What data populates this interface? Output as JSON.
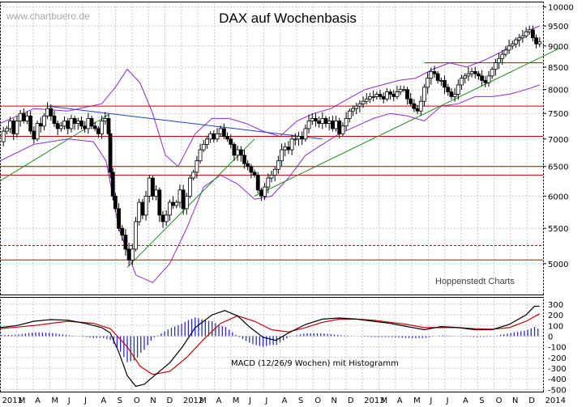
{
  "chart_data": [
    {
      "type": "candlestick",
      "title": "DAX auf Wochenbasis",
      "watermark": "www.chartbuero.de",
      "credit": "Hoppenstedt Charts",
      "y_scale": "log",
      "ylim": [
        4600,
        10100
      ],
      "y_ticks": [
        5000,
        5500,
        6000,
        6500,
        7000,
        7500,
        8000,
        8500,
        9000,
        9500,
        10000
      ],
      "x_ticks": [
        "2011",
        "M",
        "A",
        "M",
        "J",
        "J",
        "A",
        "S",
        "O",
        "N",
        "D",
        "2012",
        "M",
        "A",
        "M",
        "J",
        "J",
        "A",
        "S",
        "O",
        "N",
        "D",
        "2013",
        "M",
        "A",
        "M",
        "J",
        "J",
        "A",
        "S",
        "O",
        "N",
        "D",
        "2014"
      ],
      "weekly_close_path": [
        [
          0,
          6950
        ],
        [
          4,
          7150
        ],
        [
          8,
          7200
        ],
        [
          12,
          7350
        ],
        [
          16,
          7100
        ],
        [
          20,
          7350
        ],
        [
          24,
          7500
        ],
        [
          28,
          7350
        ],
        [
          32,
          7450
        ],
        [
          36,
          7150
        ],
        [
          40,
          7000
        ],
        [
          44,
          7300
        ],
        [
          48,
          7250
        ],
        [
          52,
          7450
        ],
        [
          56,
          7600
        ],
        [
          60,
          7450
        ],
        [
          64,
          7300
        ],
        [
          68,
          7200
        ],
        [
          72,
          7250
        ],
        [
          76,
          7350
        ],
        [
          80,
          7200
        ],
        [
          84,
          7400
        ],
        [
          88,
          7300
        ],
        [
          92,
          7350
        ],
        [
          96,
          7250
        ],
        [
          100,
          7200
        ],
        [
          104,
          7400
        ],
        [
          108,
          7250
        ],
        [
          112,
          7200
        ],
        [
          116,
          7100
        ],
        [
          120,
          7350
        ],
        [
          124,
          7400
        ],
        [
          128,
          7100
        ],
        [
          130,
          6400
        ],
        [
          133,
          6000
        ],
        [
          136,
          5800
        ],
        [
          140,
          5500
        ],
        [
          144,
          5400
        ],
        [
          148,
          5200
        ],
        [
          152,
          5050
        ],
        [
          156,
          5200
        ],
        [
          160,
          5600
        ],
        [
          164,
          5900
        ],
        [
          168,
          5700
        ],
        [
          172,
          6000
        ],
        [
          176,
          6300
        ],
        [
          180,
          6000
        ],
        [
          184,
          6100
        ],
        [
          188,
          5700
        ],
        [
          192,
          5600
        ],
        [
          196,
          5700
        ],
        [
          200,
          5900
        ],
        [
          204,
          5850
        ],
        [
          208,
          5900
        ],
        [
          212,
          6100
        ],
        [
          216,
          5800
        ],
        [
          220,
          6000
        ],
        [
          224,
          6300
        ],
        [
          228,
          6400
        ],
        [
          232,
          6600
        ],
        [
          236,
          6800
        ],
        [
          240,
          6900
        ],
        [
          244,
          7000
        ],
        [
          248,
          7100
        ],
        [
          252,
          7000
        ],
        [
          256,
          7100
        ],
        [
          260,
          7200
        ],
        [
          264,
          7050
        ],
        [
          268,
          7000
        ],
        [
          272,
          6900
        ],
        [
          276,
          6700
        ],
        [
          280,
          6800
        ],
        [
          284,
          6700
        ],
        [
          288,
          6550
        ],
        [
          292,
          6500
        ],
        [
          296,
          6400
        ],
        [
          300,
          6350
        ],
        [
          304,
          6100
        ],
        [
          308,
          6000
        ],
        [
          312,
          6150
        ],
        [
          316,
          6300
        ],
        [
          320,
          6350
        ],
        [
          324,
          6450
        ],
        [
          328,
          6600
        ],
        [
          332,
          6800
        ],
        [
          336,
          6850
        ],
        [
          340,
          6800
        ],
        [
          344,
          7000
        ],
        [
          348,
          7000
        ],
        [
          352,
          7050
        ],
        [
          356,
          7000
        ],
        [
          360,
          7200
        ],
        [
          364,
          7350
        ],
        [
          368,
          7400
        ],
        [
          372,
          7350
        ],
        [
          376,
          7300
        ],
        [
          380,
          7400
        ],
        [
          384,
          7300
        ],
        [
          388,
          7350
        ],
        [
          392,
          7200
        ],
        [
          396,
          7350
        ],
        [
          400,
          7100
        ],
        [
          404,
          7250
        ],
        [
          408,
          7400
        ],
        [
          412,
          7550
        ],
        [
          416,
          7600
        ],
        [
          420,
          7650
        ],
        [
          424,
          7700
        ],
        [
          428,
          7750
        ],
        [
          432,
          7800
        ],
        [
          436,
          7850
        ],
        [
          440,
          7850
        ],
        [
          444,
          7900
        ],
        [
          448,
          7850
        ],
        [
          452,
          7800
        ],
        [
          456,
          7950
        ],
        [
          460,
          7900
        ],
        [
          464,
          7850
        ],
        [
          468,
          7950
        ],
        [
          472,
          8000
        ],
        [
          476,
          8000
        ],
        [
          480,
          7800
        ],
        [
          484,
          7700
        ],
        [
          488,
          7600
        ],
        [
          492,
          7550
        ],
        [
          496,
          7750
        ],
        [
          500,
          8050
        ],
        [
          504,
          8250
        ],
        [
          508,
          8400
        ],
        [
          512,
          8350
        ],
        [
          516,
          8200
        ],
        [
          520,
          8200
        ],
        [
          524,
          8050
        ],
        [
          528,
          7950
        ],
        [
          532,
          7850
        ],
        [
          536,
          7900
        ],
        [
          540,
          8100
        ],
        [
          544,
          8250
        ],
        [
          548,
          8300
        ],
        [
          552,
          8350
        ],
        [
          556,
          8400
        ],
        [
          560,
          8350
        ],
        [
          564,
          8300
        ],
        [
          568,
          8200
        ],
        [
          572,
          8150
        ],
        [
          576,
          8300
        ],
        [
          580,
          8450
        ],
        [
          584,
          8600
        ],
        [
          588,
          8700
        ],
        [
          592,
          8800
        ],
        [
          596,
          8900
        ],
        [
          600,
          9000
        ],
        [
          604,
          9050
        ],
        [
          608,
          9150
        ],
        [
          612,
          9200
        ],
        [
          616,
          9250
        ],
        [
          620,
          9350
        ],
        [
          624,
          9400
        ],
        [
          628,
          9200
        ],
        [
          632,
          9050
        ],
        [
          636,
          9100
        ]
      ],
      "bollinger_upper": [
        [
          0,
          7300
        ],
        [
          40,
          7600
        ],
        [
          80,
          7550
        ],
        [
          120,
          7700
        ],
        [
          136,
          8050
        ],
        [
          150,
          8450
        ],
        [
          165,
          8150
        ],
        [
          180,
          7500
        ],
        [
          195,
          6700
        ],
        [
          210,
          6500
        ],
        [
          230,
          7100
        ],
        [
          250,
          7400
        ],
        [
          270,
          7400
        ],
        [
          290,
          7300
        ],
        [
          310,
          7150
        ],
        [
          330,
          7050
        ],
        [
          350,
          7350
        ],
        [
          370,
          7500
        ],
        [
          390,
          7600
        ],
        [
          410,
          7800
        ],
        [
          430,
          8000
        ],
        [
          450,
          8100
        ],
        [
          470,
          8200
        ],
        [
          490,
          8250
        ],
        [
          510,
          8450
        ],
        [
          530,
          8600
        ],
        [
          550,
          8500
        ],
        [
          570,
          8650
        ],
        [
          590,
          8850
        ],
        [
          610,
          9100
        ],
        [
          625,
          9400
        ],
        [
          636,
          9500
        ]
      ],
      "bollinger_lower": [
        [
          0,
          6600
        ],
        [
          40,
          6900
        ],
        [
          80,
          7000
        ],
        [
          110,
          6950
        ],
        [
          125,
          6600
        ],
        [
          140,
          5500
        ],
        [
          160,
          4850
        ],
        [
          180,
          4750
        ],
        [
          200,
          5000
        ],
        [
          220,
          5500
        ],
        [
          240,
          6150
        ],
        [
          260,
          6350
        ],
        [
          280,
          6200
        ],
        [
          300,
          5950
        ],
        [
          320,
          6000
        ],
        [
          340,
          6300
        ],
        [
          360,
          6700
        ],
        [
          380,
          6900
        ],
        [
          400,
          7100
        ],
        [
          420,
          7250
        ],
        [
          440,
          7400
        ],
        [
          460,
          7500
        ],
        [
          480,
          7450
        ],
        [
          500,
          7350
        ],
        [
          520,
          7650
        ],
        [
          540,
          7700
        ],
        [
          560,
          7850
        ],
        [
          580,
          7850
        ],
        [
          600,
          7900
        ],
        [
          620,
          8000
        ],
        [
          636,
          8100
        ]
      ],
      "trendlines": [
        {
          "name": "blue-downtrend",
          "color": "#1f3fcf",
          "points": [
            [
              56,
              7650
            ],
            [
              380,
              7000
            ]
          ]
        },
        {
          "name": "green-uptrend-1",
          "color": "#1e8c1e",
          "points": [
            [
              0,
              6250
            ],
            [
              130,
              7500
            ]
          ]
        },
        {
          "name": "green-uptrend-2",
          "color": "#1e8c1e",
          "points": [
            [
              150,
              4950
            ],
            [
              300,
              7000
            ]
          ]
        },
        {
          "name": "green-uptrend-3",
          "color": "#1e8c1e",
          "points": [
            [
              300,
              6000
            ],
            [
              660,
              8950
            ]
          ]
        }
      ],
      "horizontal_levels": [
        5050,
        5250,
        6350,
        6500,
        7050,
        7650,
        8600
      ],
      "colors": {
        "price": "#000000",
        "bollinger": "#8a2be2",
        "support": "#cc0000",
        "grid": "#c8c8c8"
      }
    },
    {
      "type": "line",
      "title": "MACD (12/26/9 Wochen) mit Histogramm",
      "ylim": [
        -520,
        360
      ],
      "y_ticks": [
        300,
        200,
        100,
        0,
        -100,
        -200,
        -300,
        -400,
        -500
      ],
      "macd": [
        [
          0,
          80
        ],
        [
          20,
          100
        ],
        [
          40,
          140
        ],
        [
          60,
          155
        ],
        [
          80,
          150
        ],
        [
          100,
          120
        ],
        [
          120,
          80
        ],
        [
          130,
          30
        ],
        [
          140,
          -150
        ],
        [
          150,
          -370
        ],
        [
          160,
          -470
        ],
        [
          170,
          -450
        ],
        [
          185,
          -350
        ],
        [
          200,
          -250
        ],
        [
          215,
          -100
        ],
        [
          230,
          80
        ],
        [
          250,
          200
        ],
        [
          265,
          240
        ],
        [
          280,
          190
        ],
        [
          295,
          80
        ],
        [
          310,
          -10
        ],
        [
          325,
          -40
        ],
        [
          340,
          30
        ],
        [
          360,
          110
        ],
        [
          380,
          160
        ],
        [
          400,
          170
        ],
        [
          420,
          160
        ],
        [
          440,
          140
        ],
        [
          460,
          120
        ],
        [
          480,
          90
        ],
        [
          500,
          60
        ],
        [
          520,
          90
        ],
        [
          540,
          80
        ],
        [
          560,
          60
        ],
        [
          580,
          60
        ],
        [
          600,
          110
        ],
        [
          620,
          200
        ],
        [
          630,
          280
        ],
        [
          636,
          280
        ]
      ],
      "signal": [
        [
          0,
          70
        ],
        [
          40,
          100
        ],
        [
          80,
          140
        ],
        [
          110,
          120
        ],
        [
          130,
          70
        ],
        [
          150,
          -100
        ],
        [
          165,
          -280
        ],
        [
          180,
          -360
        ],
        [
          200,
          -330
        ],
        [
          220,
          -200
        ],
        [
          240,
          -30
        ],
        [
          260,
          120
        ],
        [
          280,
          190
        ],
        [
          300,
          140
        ],
        [
          320,
          60
        ],
        [
          340,
          40
        ],
        [
          360,
          80
        ],
        [
          380,
          130
        ],
        [
          400,
          160
        ],
        [
          420,
          160
        ],
        [
          440,
          150
        ],
        [
          460,
          130
        ],
        [
          480,
          110
        ],
        [
          500,
          80
        ],
        [
          520,
          80
        ],
        [
          540,
          80
        ],
        [
          560,
          70
        ],
        [
          580,
          65
        ],
        [
          600,
          80
        ],
        [
          620,
          140
        ],
        [
          636,
          210
        ]
      ],
      "histogram_color": "#2a2ad0",
      "colors": {
        "macd": "#000000",
        "signal": "#cc0000"
      }
    }
  ]
}
